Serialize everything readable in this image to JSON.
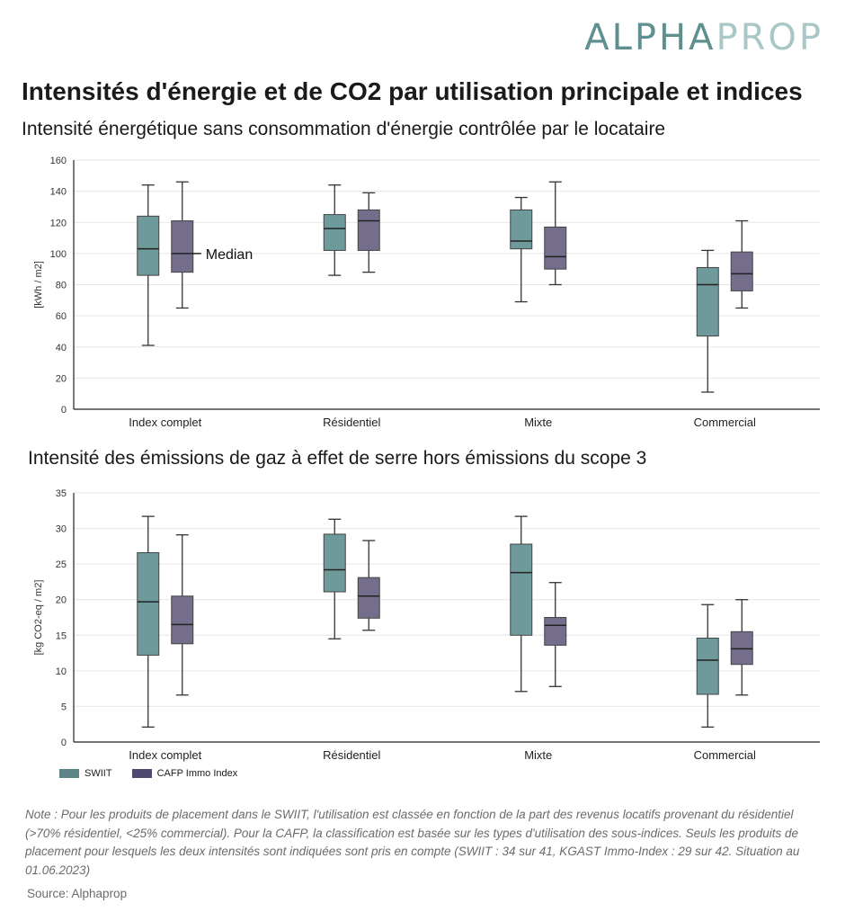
{
  "logo": {
    "part1": "ALPHA",
    "part2": "PROP"
  },
  "title": "Intensités d'énergie et de CO2 par utilisation principale et indices",
  "colors": {
    "swiit": "#6f9a9c",
    "cafp": "#756d8c",
    "swiit_legend": "#5d8587",
    "cafp_legend": "#4f4870"
  },
  "legend": [
    {
      "name": "SWIIT"
    },
    {
      "name": "CAFP Immo Index"
    }
  ],
  "chart_data": [
    {
      "type": "box",
      "title": "Intensité énergétique sans consommation d'énergie contrôlée par le locataire",
      "ylabel": "[kWh / m2]",
      "ylim": [
        0,
        160
      ],
      "yticks": [
        "0",
        "20",
        "40",
        "60",
        "80",
        "100",
        "120",
        "140",
        "160"
      ],
      "grid": true,
      "categories": [
        "Index complet",
        "Résidentiel",
        "Mixte",
        "Commercial"
      ],
      "annotation": "Median",
      "series": [
        {
          "name": "SWIIT",
          "boxes": [
            {
              "min": 41,
              "q1": 86,
              "median": 103,
              "q3": 124,
              "max": 144
            },
            {
              "min": 86,
              "q1": 102,
              "median": 116,
              "q3": 125,
              "max": 144
            },
            {
              "min": 69,
              "q1": 103,
              "median": 108,
              "q3": 128,
              "max": 136
            },
            {
              "min": 11,
              "q1": 47,
              "median": 80,
              "q3": 91,
              "max": 102
            }
          ]
        },
        {
          "name": "CAFP Immo Index",
          "boxes": [
            {
              "min": 65,
              "q1": 88,
              "median": 100,
              "q3": 121,
              "max": 146
            },
            {
              "min": 88,
              "q1": 102,
              "median": 121,
              "q3": 128,
              "max": 139
            },
            {
              "min": 80,
              "q1": 90,
              "median": 98,
              "q3": 117,
              "max": 146
            },
            {
              "min": 65,
              "q1": 76,
              "median": 87,
              "q3": 101,
              "max": 121
            }
          ]
        }
      ]
    },
    {
      "type": "box",
      "title": "Intensité des émissions de gaz à effet de serre hors émissions du scope 3",
      "ylabel": "[kg CO2-eq / m2]",
      "ylim": [
        0,
        35
      ],
      "yticks": [
        "0",
        "5",
        "10",
        "15",
        "20",
        "25",
        "30",
        "35"
      ],
      "grid": true,
      "categories": [
        "Index complet",
        "Résidentiel",
        "Mixte",
        "Commercial"
      ],
      "series": [
        {
          "name": "SWIIT",
          "boxes": [
            {
              "min": 2.1,
              "q1": 12.2,
              "median": 19.7,
              "q3": 26.6,
              "max": 31.7
            },
            {
              "min": 14.5,
              "q1": 21.1,
              "median": 24.2,
              "q3": 29.2,
              "max": 31.3
            },
            {
              "min": 7.1,
              "q1": 15.0,
              "median": 23.8,
              "q3": 27.8,
              "max": 31.7
            },
            {
              "min": 2.1,
              "q1": 6.7,
              "median": 11.5,
              "q3": 14.6,
              "max": 19.3
            }
          ]
        },
        {
          "name": "CAFP Immo Index",
          "boxes": [
            {
              "min": 6.6,
              "q1": 13.8,
              "median": 16.5,
              "q3": 20.5,
              "max": 29.1
            },
            {
              "min": 15.7,
              "q1": 17.4,
              "median": 20.5,
              "q3": 23.1,
              "max": 28.3
            },
            {
              "min": 7.8,
              "q1": 13.6,
              "median": 16.4,
              "q3": 17.5,
              "max": 22.4
            },
            {
              "min": 6.6,
              "q1": 10.9,
              "median": 13.1,
              "q3": 15.5,
              "max": 20.0
            }
          ]
        }
      ]
    }
  ],
  "note": "Note : Pour les produits de placement dans le SWIIT, l'utilisation est classée en fonction de la part des revenus locatifs provenant du résidentiel (>70% résidentiel, <25% commercial). Pour la CAFP, la classification est basée sur les types d'utilisation des sous-indices. Seuls les produits de placement pour lesquels les deux intensités sont indiquées sont pris en compte (SWIIT : 34 sur 41, KGAST Immo-Index : 29 sur 42. Situation au 01.06.2023)",
  "source": "Source: Alphaprop"
}
